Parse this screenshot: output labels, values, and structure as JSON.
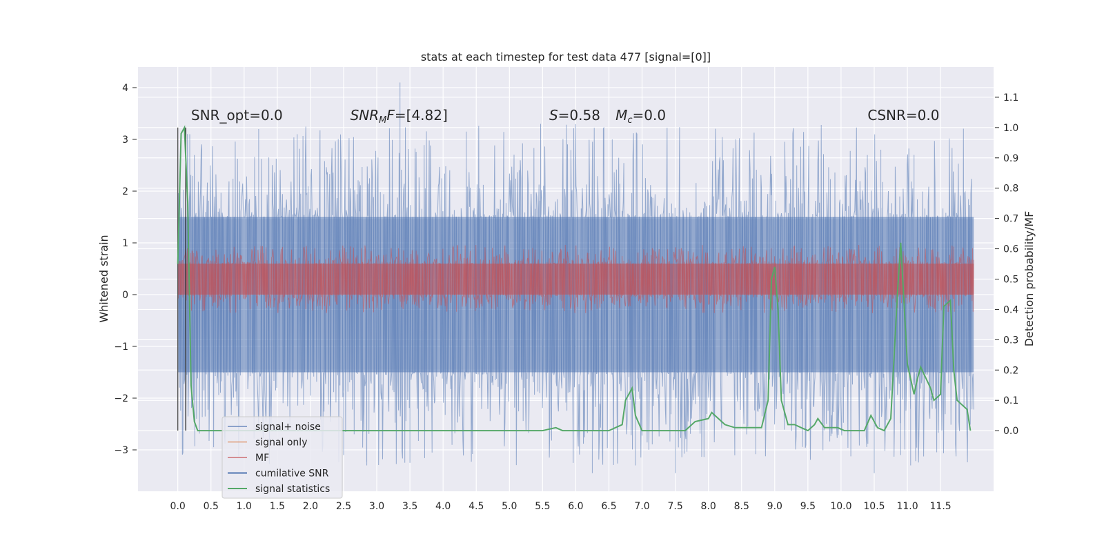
{
  "chart_data": {
    "type": "line",
    "title": "stats at each timestep for test data 477 [signal=[0]]",
    "xlabel": "",
    "ylabel": "Whitened strain",
    "ylabel_right": "Detection probability/MF",
    "xlim": [
      -0.6,
      12.3
    ],
    "ylim": [
      -3.8,
      4.4
    ],
    "ylim_right": [
      -0.2,
      1.2
    ],
    "xticks": [
      0.0,
      0.5,
      1.0,
      1.5,
      2.0,
      2.5,
      3.0,
      3.5,
      4.0,
      4.5,
      5.0,
      5.5,
      6.0,
      6.5,
      7.0,
      7.5,
      8.0,
      8.5,
      9.0,
      9.5,
      10.0,
      10.5,
      11.0,
      11.5
    ],
    "xtick_labels": [
      "0.0",
      "0.5",
      "1.0",
      "1.5",
      "2.0",
      "2.5",
      "3.0",
      "3.5",
      "4.0",
      "4.5",
      "5.0",
      "5.5",
      "6.0",
      "6.5",
      "7.0",
      "7.5",
      "8.0",
      "8.5",
      "9.0",
      "9.5",
      "10.0",
      "10.5",
      "11.0",
      "11.5"
    ],
    "yticks": [
      -3,
      -2,
      -1,
      0,
      1,
      2,
      3,
      4
    ],
    "ytick_labels": [
      "−3",
      "−2",
      "−1",
      "0",
      "1",
      "2",
      "3",
      "4"
    ],
    "yticks_right": [
      0.0,
      0.1,
      0.2,
      0.3,
      0.4,
      0.5,
      0.6,
      0.7,
      0.8,
      0.9,
      1.0,
      1.1
    ],
    "ytick_labels_right": [
      "0.0",
      "0.1",
      "0.2",
      "0.3",
      "0.4",
      "0.5",
      "0.6",
      "0.7",
      "0.8",
      "0.9",
      "1.0",
      "1.1"
    ],
    "grid": true,
    "legend_position": "lower-left",
    "annotations": [
      {
        "id": "snr-opt",
        "text": "SNR_opt=0.0",
        "x": 0.2,
        "y": 3.35
      },
      {
        "id": "snr-mf",
        "html": "SNR<tspan font-style='italic' baseline-shift='-4' font-size='13'>M</tspan>F=[4.82]",
        "text": "SNR_MF=[4.82]",
        "x": 2.6,
        "y": 3.35
      },
      {
        "id": "s-val",
        "text": "S=0.58",
        "x": 5.6,
        "y": 3.35
      },
      {
        "id": "mc-val",
        "text": "M_c=0.0",
        "x": 6.6,
        "y": 3.35
      },
      {
        "id": "csnr",
        "text": "CSNR=0.0",
        "x": 10.4,
        "y": 3.35
      }
    ],
    "series": [
      {
        "name": "signal+ noise",
        "color": "#4c72b0",
        "axis": "left",
        "kind": "noise",
        "x_range": [
          0.0,
          12.0
        ],
        "typical_lower": -1.5,
        "typical_upper": 1.5,
        "peaks": [
          [
            3.35,
            4.1
          ],
          [
            5.47,
            3.3
          ],
          [
            1.8,
            3.1
          ],
          [
            0.18,
            3.1
          ],
          [
            1.22,
            3.2
          ],
          [
            4.35,
            3.15
          ],
          [
            6.55,
            3.0
          ],
          [
            10.6,
            2.8
          ],
          [
            11.1,
            2.7
          ]
        ],
        "troughs": [
          [
            6.25,
            -3.45
          ],
          [
            7.5,
            -3.45
          ],
          [
            10.5,
            -3.45
          ],
          [
            6.9,
            -3.3
          ],
          [
            3.5,
            -3.25
          ],
          [
            2.85,
            -3.3
          ],
          [
            11.05,
            -3.3
          ],
          [
            2.5,
            -3.1
          ],
          [
            10.9,
            -3.1
          ]
        ]
      },
      {
        "name": "signal only",
        "color": "#dd8452",
        "axis": "left",
        "x": [
          0,
          12
        ],
        "y": [
          0,
          0
        ]
      },
      {
        "name": "MF",
        "color": "#c44e52",
        "axis": "left",
        "kind": "noise",
        "x_range": [
          0.0,
          12.0
        ],
        "typical_lower": 0.0,
        "typical_upper": 0.6,
        "peaks": [
          [
            5.35,
            0.9
          ],
          [
            6.2,
            0.8
          ]
        ],
        "troughs": []
      },
      {
        "name": "cumilative SNR",
        "color": "#4c72b0",
        "axis": "left",
        "x": [
          0,
          12
        ],
        "y": [
          0,
          0
        ]
      },
      {
        "name": "signal statistics",
        "color": "#55a868",
        "axis": "right",
        "x": [
          0.0,
          0.05,
          0.1,
          0.15,
          0.2,
          0.25,
          0.3,
          0.35,
          0.5,
          1.0,
          1.5,
          2.0,
          2.5,
          3.0,
          3.3,
          3.4,
          3.6,
          4.0,
          4.3,
          4.6,
          5.0,
          5.5,
          5.7,
          5.8,
          6.0,
          6.2,
          6.5,
          6.7,
          6.75,
          6.85,
          6.9,
          7.0,
          7.5,
          7.65,
          7.7,
          7.8,
          8.0,
          8.05,
          8.15,
          8.25,
          8.4,
          8.55,
          8.8,
          8.9,
          8.95,
          9.0,
          9.05,
          9.1,
          9.2,
          9.3,
          9.4,
          9.5,
          9.6,
          9.65,
          9.75,
          9.85,
          9.95,
          10.05,
          10.15,
          10.35,
          10.45,
          10.55,
          10.65,
          10.75,
          10.85,
          10.9,
          11.0,
          11.1,
          11.15,
          11.2,
          11.35,
          11.4,
          11.5,
          11.55,
          11.65,
          11.7,
          11.75,
          11.9,
          11.95
        ],
        "y": [
          0.55,
          0.98,
          1.0,
          0.75,
          0.15,
          0.03,
          0.0,
          0.0,
          0.0,
          0.0,
          0.0,
          0.0,
          0.0,
          0.0,
          0.0,
          0.0,
          0.0,
          0.0,
          0.0,
          0.0,
          0.0,
          0.0,
          0.01,
          0.0,
          0.0,
          0.0,
          0.0,
          0.02,
          0.1,
          0.14,
          0.05,
          0.0,
          0.0,
          0.0,
          0.01,
          0.03,
          0.04,
          0.06,
          0.04,
          0.02,
          0.01,
          0.01,
          0.01,
          0.1,
          0.5,
          0.54,
          0.4,
          0.1,
          0.02,
          0.02,
          0.01,
          0.0,
          0.02,
          0.04,
          0.01,
          0.01,
          0.01,
          0.0,
          0.0,
          0.0,
          0.05,
          0.01,
          0.0,
          0.04,
          0.45,
          0.62,
          0.22,
          0.12,
          0.17,
          0.21,
          0.14,
          0.1,
          0.12,
          0.41,
          0.43,
          0.2,
          0.1,
          0.07,
          0.0
        ]
      }
    ]
  }
}
